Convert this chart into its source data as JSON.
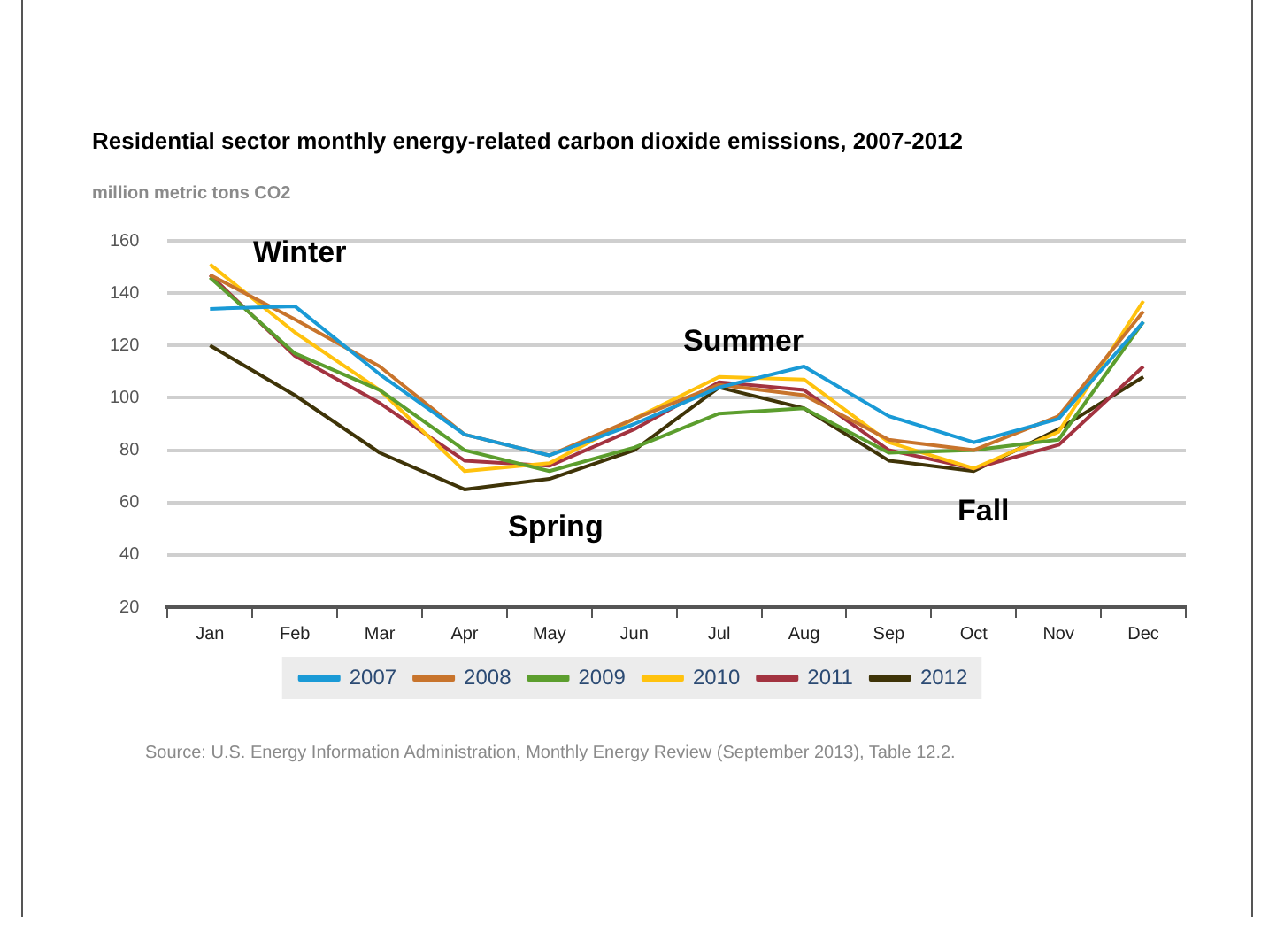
{
  "chart_data": {
    "type": "line",
    "title": "Residential sector monthly energy-related carbon dioxide emissions, 2007-2012",
    "ylabel": "million metric tons CO2",
    "categories": [
      "Jan",
      "Feb",
      "Mar",
      "Apr",
      "May",
      "Jun",
      "Jul",
      "Aug",
      "Sep",
      "Oct",
      "Nov",
      "Dec"
    ],
    "series": [
      {
        "name": "2007",
        "color": "#1a9ad6",
        "values": [
          134,
          135,
          109,
          86,
          78,
          90,
          104,
          112,
          93,
          83,
          92,
          129
        ]
      },
      {
        "name": "2008",
        "color": "#c8742c",
        "values": [
          147,
          130,
          112,
          86,
          78,
          92,
          105,
          101,
          84,
          80,
          93,
          133
        ]
      },
      {
        "name": "2009",
        "color": "#5c9e2e",
        "values": [
          146,
          117,
          103,
          80,
          72,
          81,
          94,
          96,
          79,
          80,
          84,
          129
        ]
      },
      {
        "name": "2010",
        "color": "#ffc20e",
        "values": [
          151,
          125,
          103,
          72,
          75,
          92,
          108,
          107,
          83,
          73,
          87,
          137
        ]
      },
      {
        "name": "2011",
        "color": "#a33340",
        "values": [
          147,
          116,
          98,
          76,
          74,
          88,
          106,
          103,
          80,
          73,
          82,
          112
        ]
      },
      {
        "name": "2012",
        "color": "#3f3408",
        "values": [
          120,
          101,
          79,
          65,
          69,
          80,
          104,
          96,
          76,
          72,
          88,
          108
        ]
      }
    ],
    "ylim": [
      20,
      160
    ],
    "yticks": [
      20,
      40,
      60,
      80,
      100,
      120,
      140,
      160
    ],
    "grid": "y",
    "legend": "bottom",
    "line_style": "solid",
    "annotations": [
      "Winter",
      "Spring",
      "Summer",
      "Fall",
      "Source: U.S. Energy Information Administration, Monthly Energy Review (September 2013), Table 12.2."
    ]
  }
}
